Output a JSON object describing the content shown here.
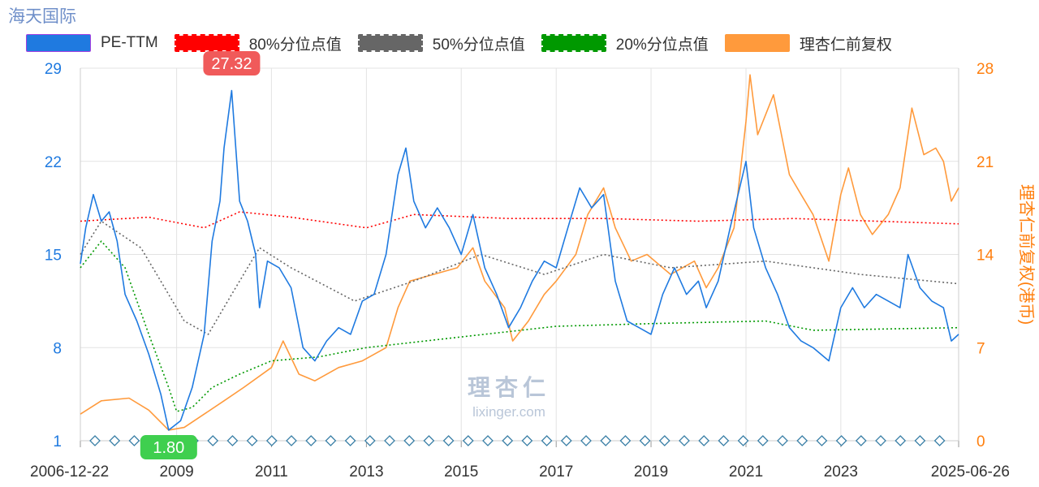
{
  "title": "海天国际",
  "watermark": {
    "cn": "理杏仁",
    "en": "lixinger.com"
  },
  "legend": [
    {
      "key": "pe",
      "label": "PE-TTM",
      "color": "#1f7ae0",
      "style": "solid"
    },
    {
      "key": "p80",
      "label": "80%分位点值",
      "color": "#ff0000",
      "style": "dotted"
    },
    {
      "key": "p50",
      "label": "50%分位点值",
      "color": "#666666",
      "style": "dotted"
    },
    {
      "key": "p20",
      "label": "20%分位点值",
      "color": "#009900",
      "style": "dotted"
    },
    {
      "key": "price",
      "label": "理杏仁前复权",
      "color": "#ff9a3c",
      "style": "solid"
    }
  ],
  "chart_data": {
    "type": "line",
    "x_start": "2006-12-22",
    "x_end": "2025-06-26",
    "x_ticks": [
      "2006-12-22",
      "2009",
      "2011",
      "2013",
      "2015",
      "2017",
      "2019",
      "2021",
      "2023",
      "2025-06-26"
    ],
    "y_left": {
      "label": "",
      "ticks": [
        1,
        8,
        15,
        22,
        29
      ],
      "range": [
        1,
        29
      ],
      "color": "#1f7ae0"
    },
    "y_right": {
      "label": "理杏仁前复权(港币)",
      "ticks": [
        0,
        7,
        14,
        21,
        28
      ],
      "range": [
        0,
        28
      ],
      "color": "#ff7f0e"
    },
    "grid": true,
    "legend_position": "top",
    "annotations": [
      {
        "label": "27.32",
        "x": "2010-03",
        "y": 27.32,
        "kind": "max",
        "color": "#f05a5a"
      },
      {
        "label": "1.80",
        "x": "2008-11",
        "y": 1.8,
        "kind": "min",
        "color": "#3fcf4f"
      }
    ],
    "series": [
      {
        "name": "PE-TTM",
        "axis": "left",
        "points": [
          [
            "2006-12-22",
            14.3
          ],
          [
            "2007-02",
            17.0
          ],
          [
            "2007-04",
            19.5
          ],
          [
            "2007-06",
            17.5
          ],
          [
            "2007-08",
            18.2
          ],
          [
            "2007-10",
            16.0
          ],
          [
            "2007-12",
            12.0
          ],
          [
            "2008-03",
            10.0
          ],
          [
            "2008-06",
            7.5
          ],
          [
            "2008-09",
            4.5
          ],
          [
            "2008-11",
            1.8
          ],
          [
            "2009-02",
            2.5
          ],
          [
            "2009-05",
            5.0
          ],
          [
            "2009-08",
            9.0
          ],
          [
            "2009-10",
            16.0
          ],
          [
            "2009-12",
            19.0
          ],
          [
            "2010-01",
            23.0
          ],
          [
            "2010-03",
            27.32
          ],
          [
            "2010-05",
            19.0
          ],
          [
            "2010-07",
            17.5
          ],
          [
            "2010-09",
            15.0
          ],
          [
            "2010-10",
            11.0
          ],
          [
            "2010-12",
            14.5
          ],
          [
            "2011-03",
            14.0
          ],
          [
            "2011-06",
            12.5
          ],
          [
            "2011-09",
            8.0
          ],
          [
            "2011-12",
            7.0
          ],
          [
            "2012-03",
            8.5
          ],
          [
            "2012-06",
            9.5
          ],
          [
            "2012-09",
            9.0
          ],
          [
            "2012-12",
            11.5
          ],
          [
            "2013-03",
            12.0
          ],
          [
            "2013-06",
            15.0
          ],
          [
            "2013-09",
            21.0
          ],
          [
            "2013-11",
            23.0
          ],
          [
            "2014-01",
            19.0
          ],
          [
            "2014-04",
            17.0
          ],
          [
            "2014-07",
            18.5
          ],
          [
            "2014-10",
            17.0
          ],
          [
            "2015-01",
            15.0
          ],
          [
            "2015-04",
            18.0
          ],
          [
            "2015-07",
            14.0
          ],
          [
            "2015-10",
            12.0
          ],
          [
            "2016-01",
            9.5
          ],
          [
            "2016-04",
            11.0
          ],
          [
            "2016-07",
            13.0
          ],
          [
            "2016-10",
            14.5
          ],
          [
            "2017-01",
            14.0
          ],
          [
            "2017-04",
            17.0
          ],
          [
            "2017-07",
            20.0
          ],
          [
            "2017-10",
            18.5
          ],
          [
            "2018-01",
            19.5
          ],
          [
            "2018-04",
            13.0
          ],
          [
            "2018-07",
            10.0
          ],
          [
            "2018-10",
            9.5
          ],
          [
            "2019-01",
            9.0
          ],
          [
            "2019-04",
            12.0
          ],
          [
            "2019-07",
            14.0
          ],
          [
            "2019-10",
            12.0
          ],
          [
            "2020-01",
            13.0
          ],
          [
            "2020-03",
            11.0
          ],
          [
            "2020-06",
            13.0
          ],
          [
            "2020-09",
            17.0
          ],
          [
            "2021-01",
            22.0
          ],
          [
            "2021-03",
            17.0
          ],
          [
            "2021-06",
            14.0
          ],
          [
            "2021-09",
            12.0
          ],
          [
            "2021-12",
            9.5
          ],
          [
            "2022-03",
            8.5
          ],
          [
            "2022-06",
            8.0
          ],
          [
            "2022-10",
            7.0
          ],
          [
            "2023-01",
            11.0
          ],
          [
            "2023-04",
            12.5
          ],
          [
            "2023-07",
            11.0
          ],
          [
            "2023-10",
            12.0
          ],
          [
            "2024-01",
            11.5
          ],
          [
            "2024-04",
            11.0
          ],
          [
            "2024-06",
            15.0
          ],
          [
            "2024-09",
            12.5
          ],
          [
            "2024-12",
            11.5
          ],
          [
            "2025-03",
            11.0
          ],
          [
            "2025-05",
            8.5
          ],
          [
            "2025-06-26",
            9.0
          ]
        ]
      },
      {
        "name": "80%分位点值",
        "axis": "left",
        "points": [
          [
            "2006-12-22",
            17.5
          ],
          [
            "2008-06",
            17.8
          ],
          [
            "2009-08",
            17.0
          ],
          [
            "2010-05",
            18.2
          ],
          [
            "2011-06",
            17.8
          ],
          [
            "2013-01",
            17.0
          ],
          [
            "2014-01",
            18.0
          ],
          [
            "2016-01",
            17.7
          ],
          [
            "2018-01",
            17.7
          ],
          [
            "2020-01",
            17.5
          ],
          [
            "2022-01",
            17.7
          ],
          [
            "2025-06-26",
            17.3
          ]
        ]
      },
      {
        "name": "50%分位点值",
        "axis": "left",
        "points": [
          [
            "2006-12-22",
            15.0
          ],
          [
            "2007-06",
            17.5
          ],
          [
            "2008-04",
            15.5
          ],
          [
            "2008-10",
            12.5
          ],
          [
            "2009-03",
            10.0
          ],
          [
            "2009-09",
            9.0
          ],
          [
            "2010-03",
            12.0
          ],
          [
            "2010-10",
            15.5
          ],
          [
            "2011-06",
            14.0
          ],
          [
            "2012-10",
            11.5
          ],
          [
            "2014-01",
            13.0
          ],
          [
            "2015-06",
            15.0
          ],
          [
            "2016-10",
            13.5
          ],
          [
            "2018-01",
            15.0
          ],
          [
            "2019-06",
            14.0
          ],
          [
            "2021-06",
            14.5
          ],
          [
            "2023-06",
            13.5
          ],
          [
            "2025-06-26",
            12.8
          ]
        ]
      },
      {
        "name": "20%分位点值",
        "axis": "left",
        "points": [
          [
            "2006-12-22",
            14.0
          ],
          [
            "2007-06",
            16.0
          ],
          [
            "2007-12",
            14.0
          ],
          [
            "2008-06",
            9.0
          ],
          [
            "2008-11",
            5.0
          ],
          [
            "2009-01",
            3.2
          ],
          [
            "2009-05",
            3.5
          ],
          [
            "2009-10",
            5.0
          ],
          [
            "2010-05",
            6.0
          ],
          [
            "2011-01",
            7.0
          ],
          [
            "2012-01",
            7.3
          ],
          [
            "2013-01",
            8.0
          ],
          [
            "2015-01",
            8.8
          ],
          [
            "2017-01",
            9.6
          ],
          [
            "2019-01",
            9.8
          ],
          [
            "2021-06",
            10.0
          ],
          [
            "2022-06",
            9.3
          ],
          [
            "2025-06-26",
            9.5
          ]
        ]
      },
      {
        "name": "理杏仁前复权",
        "axis": "right",
        "points": [
          [
            "2006-12-22",
            2.0
          ],
          [
            "2007-06",
            3.0
          ],
          [
            "2008-01",
            3.2
          ],
          [
            "2008-06",
            2.3
          ],
          [
            "2008-11",
            0.8
          ],
          [
            "2009-03",
            1.0
          ],
          [
            "2009-08",
            2.0
          ],
          [
            "2010-01",
            3.0
          ],
          [
            "2010-06",
            4.0
          ],
          [
            "2011-01",
            5.5
          ],
          [
            "2011-04",
            7.5
          ],
          [
            "2011-08",
            5.0
          ],
          [
            "2011-12",
            4.5
          ],
          [
            "2012-06",
            5.5
          ],
          [
            "2012-12",
            6.0
          ],
          [
            "2013-06",
            7.0
          ],
          [
            "2013-09",
            10.0
          ],
          [
            "2013-12",
            12.0
          ],
          [
            "2014-06",
            12.5
          ],
          [
            "2014-12",
            13.0
          ],
          [
            "2015-04",
            14.5
          ],
          [
            "2015-07",
            12.0
          ],
          [
            "2015-12",
            10.0
          ],
          [
            "2016-02",
            7.5
          ],
          [
            "2016-06",
            9.0
          ],
          [
            "2016-10",
            11.0
          ],
          [
            "2017-01",
            12.0
          ],
          [
            "2017-06",
            14.0
          ],
          [
            "2017-09",
            17.0
          ],
          [
            "2018-01",
            19.0
          ],
          [
            "2018-04",
            16.0
          ],
          [
            "2018-08",
            13.5
          ],
          [
            "2018-12",
            14.0
          ],
          [
            "2019-06",
            12.5
          ],
          [
            "2019-12",
            13.5
          ],
          [
            "2020-03",
            11.5
          ],
          [
            "2020-06",
            13.0
          ],
          [
            "2020-10",
            16.0
          ],
          [
            "2021-01",
            24.0
          ],
          [
            "2021-02",
            27.5
          ],
          [
            "2021-04",
            23.0
          ],
          [
            "2021-08",
            26.0
          ],
          [
            "2021-12",
            20.0
          ],
          [
            "2022-03",
            18.5
          ],
          [
            "2022-06",
            17.0
          ],
          [
            "2022-10",
            13.5
          ],
          [
            "2023-01",
            18.5
          ],
          [
            "2023-03",
            20.5
          ],
          [
            "2023-06",
            17.0
          ],
          [
            "2023-09",
            15.5
          ],
          [
            "2024-01",
            17.0
          ],
          [
            "2024-04",
            19.0
          ],
          [
            "2024-07",
            25.0
          ],
          [
            "2024-10",
            21.5
          ],
          [
            "2025-01",
            22.0
          ],
          [
            "2025-03",
            21.0
          ],
          [
            "2025-05",
            18.0
          ],
          [
            "2025-06-26",
            19.0
          ]
        ]
      }
    ]
  }
}
